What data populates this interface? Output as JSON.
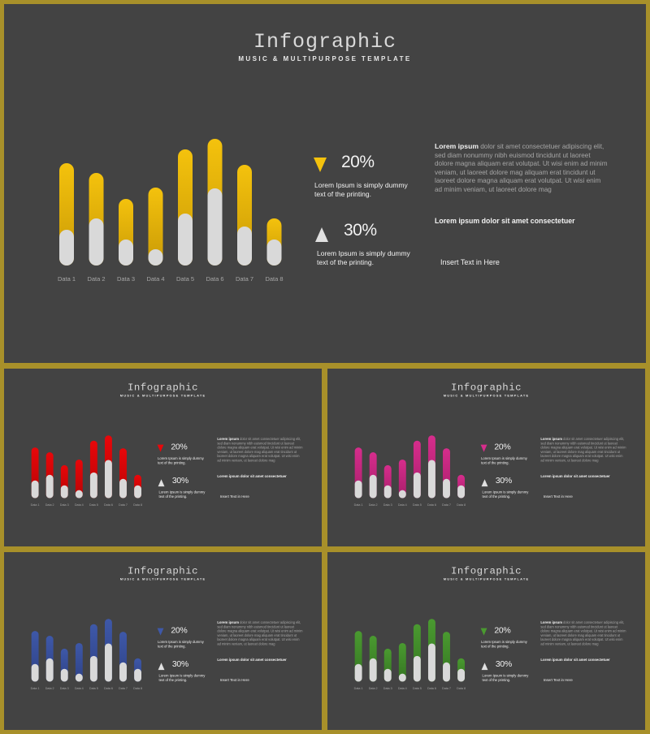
{
  "template": {
    "title": "Infographic",
    "subtitle": "MUSIC & MULTIPURPOSE TEMPLATE",
    "stat_down": {
      "value": "20%",
      "text": "Lorem Ipsum is simply dummy text of the printing."
    },
    "stat_up": {
      "value": "30%",
      "text": "Lorem Ipsum is simply dummy text of the printing."
    },
    "paragraph_heading": "Lorem ipsum",
    "paragraph_body": " dolor sit amet consectetuer adipiscing elit, sed diam nonummy nibh euismod tincidunt ut laoreet dolore magna aliquam erat volutpat. Ut wisi enim ad minim veniam, ut laoreet dolore mag aliquam erat tincidunt ut laoreet dolore magna aliquam erat volutpat. Ut wisi enim ad minim veniam, ut laoreet dolore mag",
    "subheading": "Lorem ipsum dolor sit amet consectetuer",
    "insert_text": "Insert Text in Here"
  },
  "slides": [
    {
      "name": "slide-yellow",
      "accent": "#f4c20d",
      "accent_dark": "#c99a06"
    },
    {
      "name": "slide-red",
      "accent": "#e8070a",
      "accent_dark": "#b80405"
    },
    {
      "name": "slide-pink",
      "accent": "#d62d8c",
      "accent_dark": "#a81f6b"
    },
    {
      "name": "slide-blue",
      "accent": "#3e58a8",
      "accent_dark": "#2e4287"
    },
    {
      "name": "slide-green",
      "accent": "#4a9a30",
      "accent_dark": "#357522"
    }
  ],
  "chart_data": {
    "type": "bar",
    "categories": [
      "Data 1",
      "Data 2",
      "Data 3",
      "Data 4",
      "Data 5",
      "Data 6",
      "Data 7",
      "Data 8"
    ],
    "series": [
      {
        "values": [
          126,
          114,
          82,
          96,
          143,
          156,
          124,
          58
        ]
      },
      {
        "values": [
          44,
          58,
          32,
          20,
          64,
          95,
          48,
          32
        ]
      }
    ],
    "ylim": [
      0,
      160
    ]
  }
}
